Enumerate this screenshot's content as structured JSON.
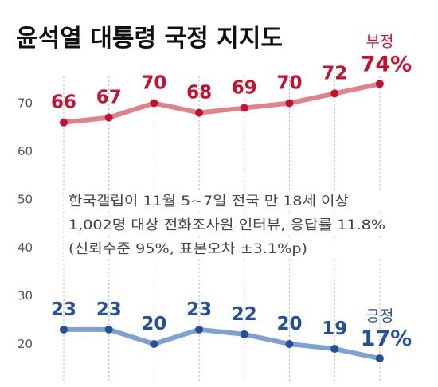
{
  "chart_data": {
    "type": "line",
    "title": "윤석열 대통령 국정 지지도",
    "categories": [
      "",
      "",
      "",
      "",
      "",
      "",
      "",
      ""
    ],
    "y_ticks": [
      20,
      30,
      40,
      50,
      60,
      70
    ],
    "ylim": [
      20,
      76
    ],
    "series": [
      {
        "name": "부정",
        "end_label": "74%",
        "color": "#e0828a",
        "marker_color": "#c8102e",
        "label_color": "#c8102e",
        "values": [
          66,
          67,
          70,
          68,
          69,
          70,
          72,
          74
        ],
        "labels": [
          "66",
          "67",
          "70",
          "68",
          "69",
          "70",
          "72",
          ""
        ]
      },
      {
        "name": "긍정",
        "end_label": "17%",
        "color": "#7ea1d4",
        "marker_color": "#234f9c",
        "label_color": "#234f9c",
        "values": [
          23,
          23,
          20,
          23,
          22,
          20,
          19,
          17
        ],
        "labels": [
          "23",
          "23",
          "20",
          "23",
          "22",
          "20",
          "19",
          ""
        ]
      }
    ],
    "annotation": [
      "한국갤럽이 11월 5~7일 전국 만 18세 이상",
      "1,002명 대상 전화조사원 인터뷰, 응답률 11.8%",
      "(신뢰수준 95%, 표본오차 ±3.1%p)"
    ],
    "grid": "vertical-dotted",
    "legend": "inline-end"
  }
}
